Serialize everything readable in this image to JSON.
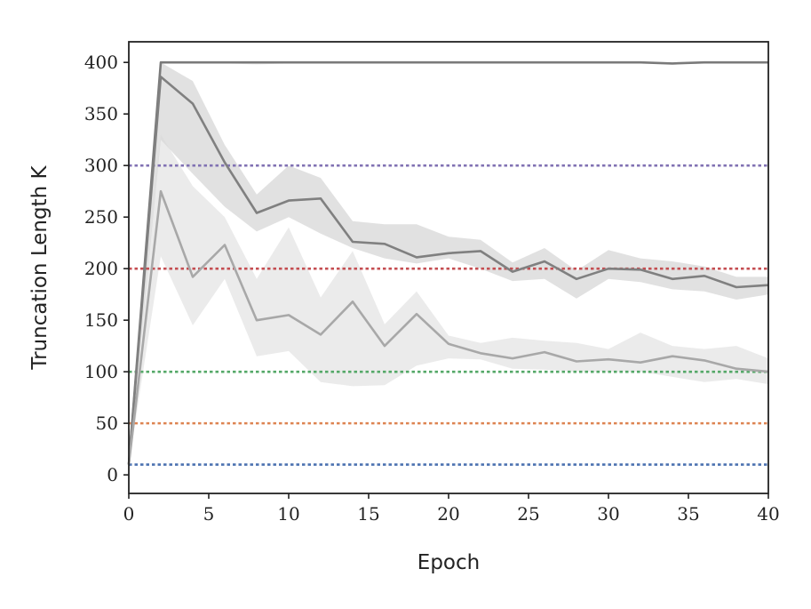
{
  "chart_data": {
    "type": "line",
    "title": "",
    "xlabel": "Epoch",
    "ylabel": "Truncation Length K",
    "xlim": [
      0,
      40
    ],
    "ylim": [
      -18,
      420
    ],
    "xticks": [
      0,
      5,
      10,
      15,
      20,
      25,
      30,
      35,
      40
    ],
    "yticks": [
      0,
      50,
      100,
      150,
      200,
      250,
      300,
      350,
      400
    ],
    "grid": false,
    "legend": "none",
    "reference_lines": [
      {
        "y": 10,
        "color": "#4c72b0",
        "style": "dotted"
      },
      {
        "y": 50,
        "color": "#dd8452",
        "style": "dotted"
      },
      {
        "y": 100,
        "color": "#55a868",
        "style": "dotted"
      },
      {
        "y": 200,
        "color": "#c44e52",
        "style": "dotted"
      },
      {
        "y": 300,
        "color": "#8172b3",
        "style": "dotted"
      }
    ],
    "x": [
      0,
      2,
      4,
      6,
      8,
      10,
      12,
      14,
      16,
      18,
      20,
      22,
      24,
      26,
      28,
      30,
      32,
      34,
      36,
      38,
      40
    ],
    "series": [
      {
        "color": "#7a7a7a",
        "band_color": "#c8c8c8",
        "band_opacity": 0.35,
        "values": [
          10,
          400,
          400,
          400,
          400,
          400,
          400,
          400,
          400,
          400,
          400,
          400,
          400,
          400,
          400,
          400,
          400,
          399,
          400,
          400,
          400
        ],
        "upper": [
          10,
          400,
          400,
          400,
          400,
          400,
          400,
          400,
          400,
          400,
          400,
          400,
          400,
          400,
          400,
          400,
          400,
          400,
          400,
          400,
          400
        ],
        "lower": [
          10,
          400,
          399,
          399,
          398,
          399,
          400,
          400,
          400,
          400,
          400,
          400,
          400,
          400,
          400,
          400,
          400,
          398,
          399,
          400,
          400
        ]
      },
      {
        "color": "#808080",
        "band_color": "#b5b5b5",
        "band_opacity": 0.4,
        "values": [
          10,
          386,
          360,
          303,
          254,
          266,
          268,
          226,
          224,
          211,
          215,
          217,
          197,
          207,
          190,
          200,
          199,
          190,
          193,
          182,
          184
        ],
        "upper": [
          10,
          400,
          382,
          320,
          272,
          300,
          288,
          246,
          243,
          243,
          231,
          228,
          206,
          220,
          198,
          218,
          210,
          207,
          202,
          192,
          192
        ],
        "lower": [
          10,
          325,
          292,
          260,
          236,
          250,
          234,
          220,
          210,
          205,
          210,
          200,
          188,
          190,
          171,
          190,
          187,
          180,
          178,
          170,
          175
        ]
      },
      {
        "color": "#a8a8a8",
        "band_color": "#d8d8d8",
        "band_opacity": 0.5,
        "values": [
          10,
          275,
          192,
          223,
          150,
          155,
          136,
          168,
          125,
          156,
          127,
          118,
          113,
          119,
          110,
          112,
          109,
          115,
          111,
          103,
          100
        ],
        "upper": [
          10,
          330,
          280,
          250,
          190,
          240,
          172,
          217,
          146,
          178,
          135,
          128,
          133,
          130,
          128,
          122,
          138,
          125,
          122,
          125,
          113
        ],
        "lower": [
          10,
          212,
          145,
          190,
          115,
          120,
          90,
          86,
          87,
          106,
          113,
          112,
          103,
          102,
          100,
          100,
          100,
          95,
          90,
          93,
          88
        ]
      }
    ]
  }
}
